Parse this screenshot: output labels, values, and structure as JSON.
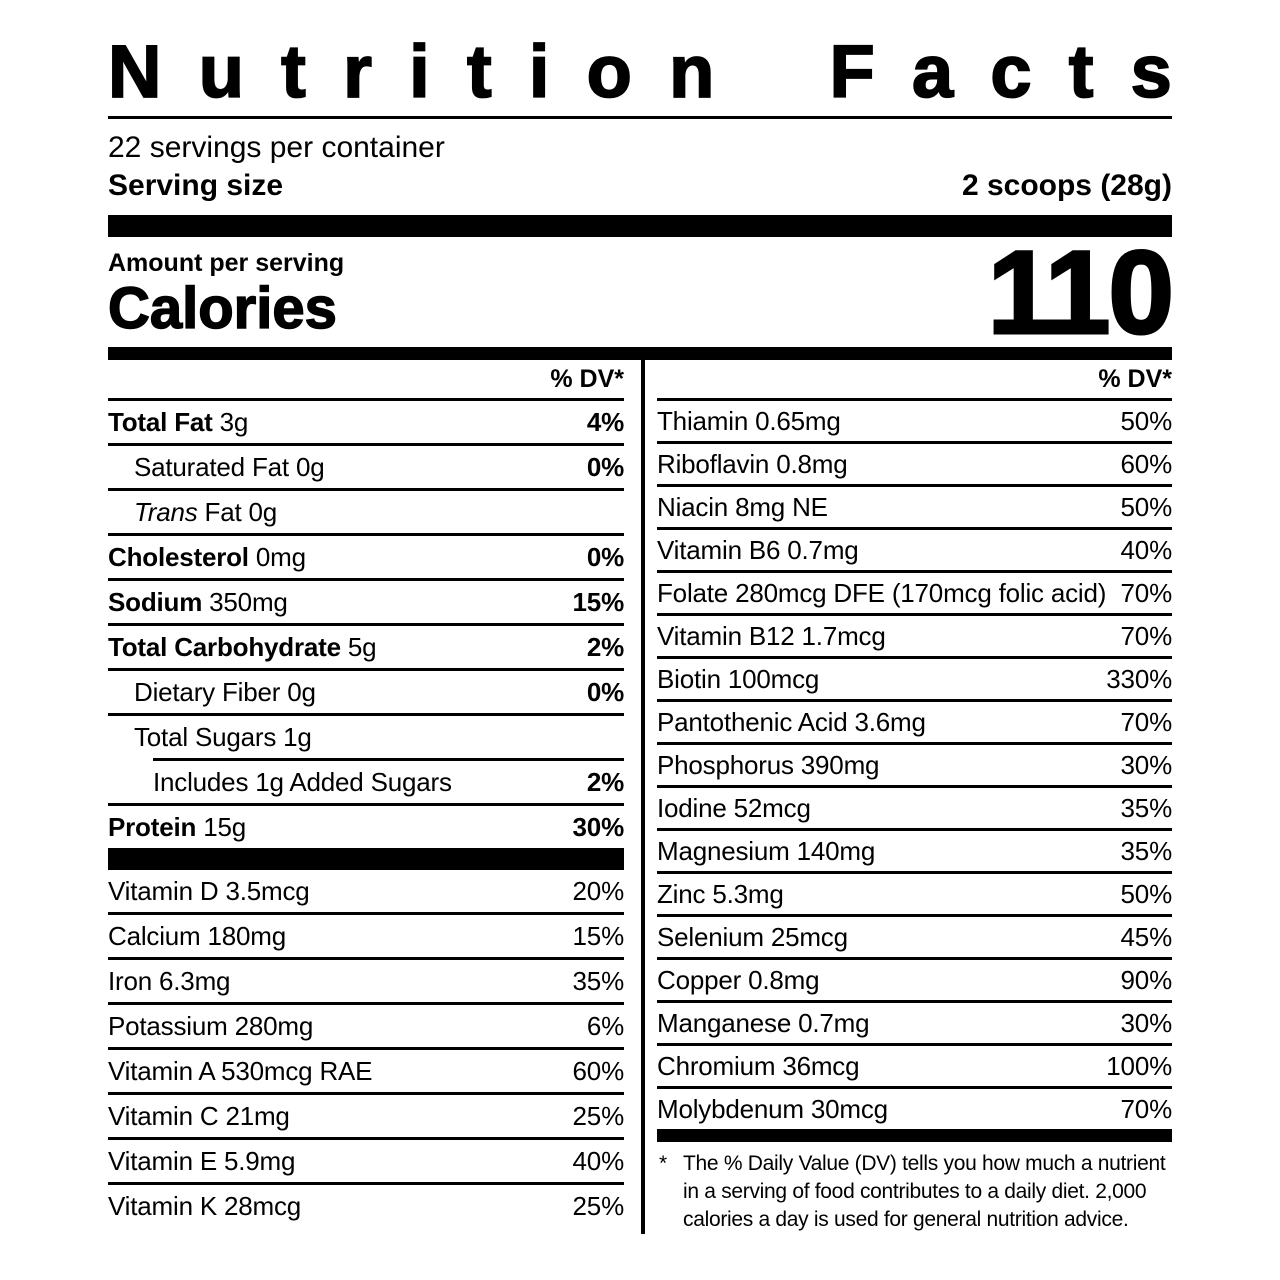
{
  "header": {
    "title": "Nutrition Facts",
    "servings_per_container": "22 servings per container",
    "serving_size_label": "Serving size",
    "serving_size_value": "2 scoops (28g)"
  },
  "calories": {
    "amount_label": "Amount per serving",
    "name": "Calories",
    "value": "110"
  },
  "dv_header": "% DV*",
  "left_main_rows": [
    {
      "lead": "Total Fat",
      "lead_style": "bold",
      "rest": " 3g",
      "dv": "4%",
      "dv_bold": true
    },
    {
      "lead": "",
      "rest": "Saturated Fat 0g",
      "dv": "0%",
      "dv_bold": true,
      "indent": 1
    },
    {
      "lead": "Trans",
      "lead_style": "italic",
      "rest": " Fat 0g",
      "dv": "",
      "indent": 1
    },
    {
      "lead": "Cholesterol",
      "lead_style": "bold",
      "rest": " 0mg",
      "dv": "0%",
      "dv_bold": true
    },
    {
      "lead": "Sodium",
      "lead_style": "bold",
      "rest": " 350mg",
      "dv": "15%",
      "dv_bold": true
    },
    {
      "lead": "Total Carbohydrate",
      "lead_style": "bold",
      "rest": " 5g",
      "dv": "2%",
      "dv_bold": true
    },
    {
      "lead": "",
      "rest": "Dietary Fiber 0g",
      "dv": "0%",
      "dv_bold": true,
      "indent": 1
    },
    {
      "lead": "",
      "rest": "Total Sugars 1g",
      "dv": "",
      "indent": 1,
      "no_rule": true
    },
    {
      "lead": "",
      "rest": "Includes 1g Added Sugars",
      "dv": "2%",
      "dv_bold": true,
      "ind_rule": true,
      "no_rule": true
    },
    {
      "lead": "Protein",
      "lead_style": "bold",
      "rest": " 15g",
      "dv": "30%",
      "dv_bold": true,
      "top_rule": true,
      "no_rule": true
    }
  ],
  "left_vitamin_rows": [
    {
      "lead": "",
      "rest": "Vitamin D 3.5mcg",
      "dv": "20%"
    },
    {
      "lead": "",
      "rest": "Calcium 180mg",
      "dv": "15%"
    },
    {
      "lead": "",
      "rest": "Iron 6.3mg",
      "dv": "35%"
    },
    {
      "lead": "",
      "rest": "Potassium 280mg",
      "dv": "6%"
    },
    {
      "lead": "",
      "rest": "Vitamin A 530mcg RAE",
      "dv": "60%"
    },
    {
      "lead": "",
      "rest": "Vitamin C 21mg",
      "dv": "25%"
    },
    {
      "lead": "",
      "rest": "Vitamin E 5.9mg",
      "dv": "40%"
    },
    {
      "lead": "",
      "rest": "Vitamin K 28mcg",
      "dv": "25%",
      "no_rule": true
    }
  ],
  "right_rows": [
    {
      "lead": "",
      "rest": "Thiamin 0.65mg",
      "dv": "50%"
    },
    {
      "lead": "",
      "rest": "Riboflavin 0.8mg",
      "dv": "60%"
    },
    {
      "lead": "",
      "rest": "Niacin 8mg NE",
      "dv": "50%"
    },
    {
      "lead": "",
      "rest": "Vitamin B6 0.7mg",
      "dv": "40%"
    },
    {
      "lead": "",
      "rest": "Folate 280mcg DFE (170mcg folic acid)",
      "dv": "70%"
    },
    {
      "lead": "",
      "rest": "Vitamin B12 1.7mcg",
      "dv": "70%"
    },
    {
      "lead": "",
      "rest": "Biotin 100mcg",
      "dv": "330%"
    },
    {
      "lead": "",
      "rest": "Pantothenic Acid 3.6mg",
      "dv": "70%"
    },
    {
      "lead": "",
      "rest": "Phosphorus 390mg",
      "dv": "30%"
    },
    {
      "lead": "",
      "rest": "Iodine 52mcg",
      "dv": "35%"
    },
    {
      "lead": "",
      "rest": "Magnesium 140mg",
      "dv": "35%"
    },
    {
      "lead": "",
      "rest": "Zinc 5.3mg",
      "dv": "50%"
    },
    {
      "lead": "",
      "rest": "Selenium 25mcg",
      "dv": "45%"
    },
    {
      "lead": "",
      "rest": "Copper 0.8mg",
      "dv": "90%"
    },
    {
      "lead": "",
      "rest": "Manganese 0.7mg",
      "dv": "30%"
    },
    {
      "lead": "",
      "rest": "Chromium 36mcg",
      "dv": "100%"
    },
    {
      "lead": "",
      "rest": "Molybdenum 30mcg",
      "dv": "70%",
      "no_rule": true
    }
  ],
  "footnote": {
    "star": "*",
    "text": "The % Daily Value (DV) tells you how much a nutrient in a serving of food contributes to a daily diet. 2,000 calories a day is used for general nutrition advice."
  },
  "colors": {
    "ink": "#000000",
    "background": "#ffffff"
  }
}
